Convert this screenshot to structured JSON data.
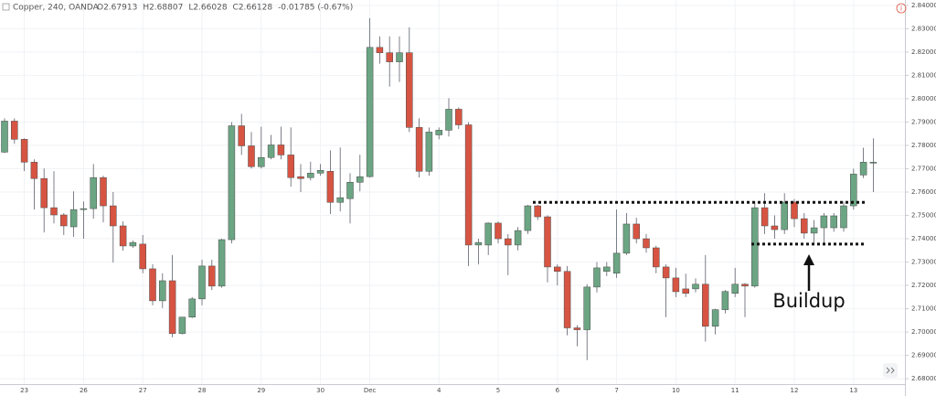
{
  "chart_data": {
    "type": "candlestick",
    "title": "Copper, 240, OANDA",
    "ohlc": [
      "O2.67913",
      "H2.68807",
      "L2.66028",
      "C2.66128",
      "-0.01785 (-0.67%)"
    ],
    "annotation": "Buildup",
    "levels": [
      2.7556,
      2.7377
    ],
    "up_color": "#6ba583",
    "down_color": "#d75442",
    "grid": true,
    "categories": [
      null,
      null,
      "23",
      null,
      null,
      null,
      null,
      null,
      "26",
      null,
      null,
      null,
      null,
      null,
      "27",
      null,
      null,
      null,
      null,
      null,
      "28",
      null,
      null,
      null,
      null,
      null,
      "29",
      null,
      null,
      null,
      null,
      null,
      "30",
      null,
      null,
      null,
      null,
      "Dec",
      null,
      null,
      null,
      null,
      null,
      null,
      "4",
      null,
      null,
      null,
      null,
      null,
      "5",
      null,
      null,
      null,
      null,
      null,
      "6",
      null,
      null,
      null,
      null,
      null,
      "7",
      null,
      null,
      null,
      null,
      null,
      "10",
      null,
      null,
      null,
      null,
      null,
      "11",
      null,
      null,
      null,
      null,
      null,
      "12",
      null,
      null,
      null,
      null,
      null,
      "13",
      null,
      null
    ],
    "open": [
      2.7771,
      2.7904,
      2.7826,
      2.7728,
      2.7658,
      2.7533,
      2.7502,
      2.7451,
      2.7525,
      2.7529,
      2.7662,
      2.7541,
      2.7455,
      2.7369,
      2.7377,
      2.7271,
      2.7134,
      2.722,
      2.6994,
      2.7064,
      2.7142,
      2.7283,
      2.7197,
      2.7396,
      2.7884,
      2.7798,
      2.7709,
      2.7748,
      2.7802,
      2.7759,
      2.7666,
      2.7662,
      2.7681,
      2.7689,
      2.7556,
      2.7572,
      2.7642,
      2.7666,
      2.822,
      2.8197,
      2.8158,
      2.8197,
      2.7877,
      2.7689,
      2.7845,
      2.7865,
      2.7955,
      2.7888,
      2.7373,
      2.7373,
      2.7467,
      2.74,
      2.7373,
      2.7435,
      2.7541,
      2.7494,
      2.7279,
      2.726,
      2.7018,
      2.701,
      2.7193,
      2.726,
      2.7252,
      2.7338,
      2.7463,
      2.74,
      2.7361,
      2.7279,
      2.7232,
      2.7185,
      2.7185,
      2.7205,
      2.7025,
      2.7096,
      2.7166,
      2.7205,
      2.7197,
      2.7533,
      2.7455,
      2.7439,
      2.7557,
      2.7486,
      2.7424,
      2.7447,
      2.7447,
      2.7447,
      2.7541,
      2.7673,
      2.7724
    ],
    "high": [
      2.7916,
      2.7916,
      2.783,
      2.774,
      2.7701,
      2.7689,
      2.751,
      2.7603,
      2.756,
      2.772,
      2.767,
      2.76,
      2.7474,
      2.7392,
      2.7416,
      2.7291,
      2.7252,
      2.733,
      2.7064,
      2.715,
      2.731,
      2.731,
      2.74,
      2.79,
      2.7935,
      2.7857,
      2.788,
      2.7845,
      2.788,
      2.7877,
      2.772,
      2.773,
      2.772,
      2.7779,
      2.7791,
      2.7681,
      2.776,
      2.8345,
      2.8267,
      2.8267,
      2.8267,
      2.8306,
      2.7916,
      2.7877,
      2.7877,
      2.8002,
      2.7963,
      2.79,
      2.74,
      2.747,
      2.7474,
      2.742,
      2.745,
      2.7545,
      2.7545,
      2.75,
      2.729,
      2.7283,
      2.703,
      2.7205,
      2.73,
      2.73,
      2.7525,
      2.751,
      2.749,
      2.742,
      2.737,
      2.729,
      2.7275,
      2.725,
      2.723,
      2.733,
      2.71,
      2.718,
      2.7275,
      2.721,
      2.756,
      2.7595,
      2.75,
      2.7595,
      2.757,
      2.751,
      2.748,
      2.751,
      2.751,
      2.756,
      2.77,
      2.779,
      2.783
    ],
    "low": [
      2.7767,
      2.7807,
      2.769,
      2.7525,
      2.7427,
      2.7466,
      2.7416,
      2.7408,
      2.74,
      2.7486,
      2.747,
      2.7298,
      2.7349,
      2.7361,
      2.7252,
      2.7115,
      2.7103,
      2.6978,
      2.699,
      2.706,
      2.7115,
      2.718,
      2.719,
      2.738,
      2.7759,
      2.7701,
      2.7701,
      2.774,
      2.774,
      2.7623,
      2.76,
      2.765,
      2.767,
      2.7506,
      2.7517,
      2.7466,
      2.7603,
      2.7662,
      2.815,
      2.8052,
      2.8072,
      2.7857,
      2.7662,
      2.767,
      2.7826,
      2.7838,
      2.787,
      2.7283,
      2.729,
      2.733,
      2.738,
      2.7244,
      2.735,
      2.742,
      2.748,
      2.7213,
      2.72,
      2.6986,
      2.6939,
      2.688,
      2.717,
      2.724,
      2.7232,
      2.733,
      2.738,
      2.734,
      2.7252,
      2.7064,
      2.715,
      2.715,
      2.717,
      2.6959,
      2.699,
      2.708,
      2.715,
      2.7064,
      2.719,
      2.742,
      2.74,
      2.742,
      2.745,
      2.74,
      2.738,
      2.738,
      2.743,
      2.743,
      2.7525,
      2.766,
      2.76
    ],
    "close": [
      2.7904,
      2.7826,
      2.7728,
      2.7658,
      2.7533,
      2.7502,
      2.7455,
      2.7525,
      2.7529,
      2.7662,
      2.7541,
      2.7455,
      2.7369,
      2.7384,
      2.7271,
      2.7134,
      2.722,
      2.6994,
      2.7064,
      2.7142,
      2.7283,
      2.7197,
      2.7396,
      2.7884,
      2.7798,
      2.7709,
      2.7748,
      2.7802,
      2.7759,
      2.7662,
      2.7658,
      2.7681,
      2.7693,
      2.7556,
      2.7576,
      2.7642,
      2.7666,
      2.822,
      2.8197,
      2.8158,
      2.8197,
      2.7877,
      2.7689,
      2.7857,
      2.7865,
      2.7955,
      2.7888,
      2.7373,
      2.7384,
      2.7467,
      2.74,
      2.7373,
      2.7435,
      2.7541,
      2.7494,
      2.7279,
      2.726,
      2.7018,
      2.701,
      2.7193,
      2.7275,
      2.7279,
      2.7338,
      2.7463,
      2.74,
      2.7361,
      2.7279,
      2.7232,
      2.7173,
      2.7166,
      2.7205,
      2.7025,
      2.7096,
      2.7174,
      2.7205,
      2.7197,
      2.7533,
      2.7455,
      2.7439,
      2.7557,
      2.7486,
      2.7424,
      2.7447,
      2.7498,
      2.7498,
      2.7541,
      2.7677,
      2.7728,
      2.7728
    ],
    "ylim": [
      2.6777,
      2.8423
    ],
    "yticks": [
      {
        "value": 2.84,
        "label": "2.84000"
      },
      {
        "value": 2.83,
        "label": "2.83000"
      },
      {
        "value": 2.82,
        "label": "2.82000"
      },
      {
        "value": 2.81,
        "label": "2.81000"
      },
      {
        "value": 2.8,
        "label": "2.80000"
      },
      {
        "value": 2.79,
        "label": "2.79000"
      },
      {
        "value": 2.78,
        "label": "2.78000"
      },
      {
        "value": 2.77,
        "label": "2.77000"
      },
      {
        "value": 2.76,
        "label": "2.76000"
      },
      {
        "value": 2.75,
        "label": "2.75000"
      },
      {
        "value": 2.74,
        "label": "2.74000"
      },
      {
        "value": 2.73,
        "label": "2.73000"
      },
      {
        "value": 2.72,
        "label": "2.72000"
      },
      {
        "value": 2.71,
        "label": "2.71000"
      },
      {
        "value": 2.7,
        "label": "2.70000"
      },
      {
        "value": 2.69,
        "label": "2.69000"
      },
      {
        "value": 2.68,
        "label": "2.68000"
      }
    ]
  }
}
